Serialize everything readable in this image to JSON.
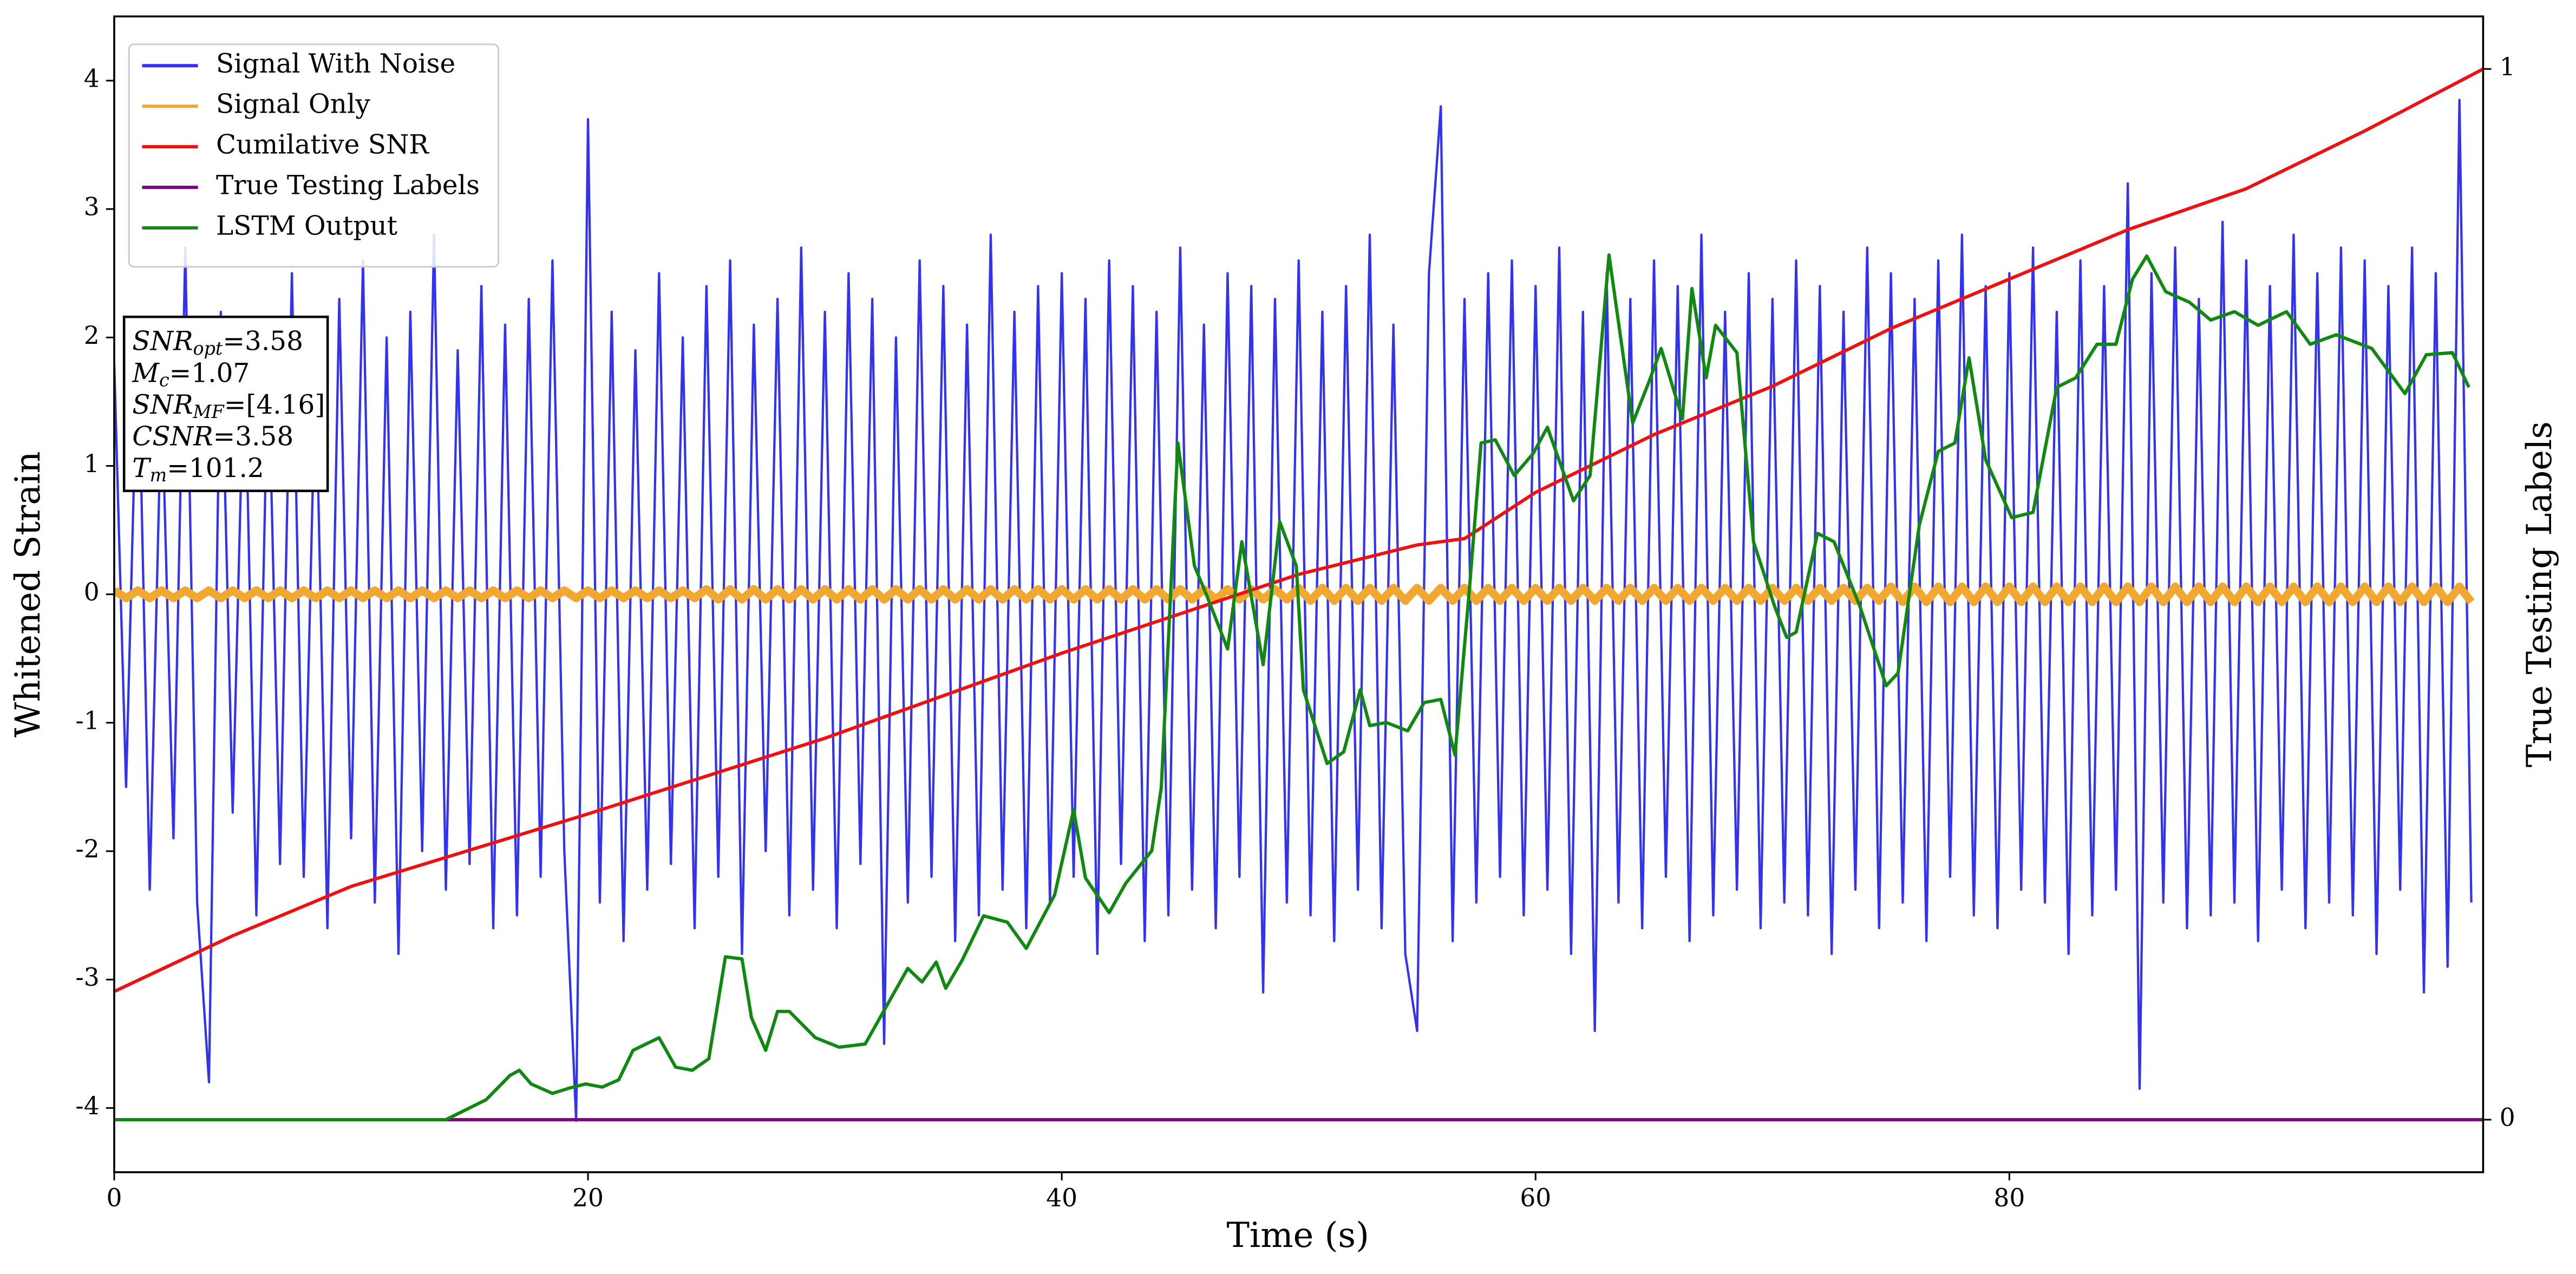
{
  "chart_data": {
    "type": "line",
    "xlabel": "Time (s)",
    "ylabel": "Whitened Strain",
    "y2label": "True Testing Labels",
    "xlim": [
      0,
      100
    ],
    "ylim": [
      -4.5,
      4.5
    ],
    "y2lim": [
      -0.05,
      1.05
    ],
    "xticks": [
      0,
      20,
      40,
      60,
      80
    ],
    "yticks": [
      -4,
      -3,
      -2,
      -1,
      0,
      1,
      2,
      3,
      4
    ],
    "y2ticks": [
      0,
      1
    ],
    "legend": "upper left",
    "annotation": [
      {
        "text": "SNR",
        "sub": "opt",
        "rest": "=3.58"
      },
      {
        "text": "M",
        "sub": "c",
        "rest": "=1.07"
      },
      {
        "text": "SNR",
        "sub": "MF",
        "rest": "=[4.16]"
      },
      {
        "text": "CSNR",
        "rest": "=3.58"
      },
      {
        "text": "T",
        "sub": "m",
        "rest": "=101.2"
      }
    ],
    "x": [
      0,
      0.5,
      1,
      1.5,
      2,
      2.5,
      3,
      3.5,
      4,
      4.5,
      5,
      5.5,
      6,
      6.5,
      7,
      7.5,
      8,
      8.5,
      9,
      9.5,
      10,
      10.5,
      11,
      11.5,
      12,
      12.5,
      13,
      13.5,
      14,
      14.5,
      15,
      15.5,
      16,
      16.5,
      17,
      17.5,
      18,
      18.5,
      19,
      19.5,
      20,
      20.5,
      21,
      21.5,
      22,
      22.5,
      23,
      23.5,
      24,
      24.5,
      25,
      25.5,
      26,
      26.5,
      27,
      27.5,
      28,
      28.5,
      29,
      29.5,
      30,
      30.5,
      31,
      31.5,
      32,
      32.5,
      33,
      33.5,
      34,
      34.5,
      35,
      35.5,
      36,
      36.5,
      37,
      37.5,
      38,
      38.5,
      39,
      39.5,
      40,
      40.5,
      41,
      41.5,
      42,
      42.5,
      43,
      43.5,
      44,
      44.5,
      45,
      45.5,
      46,
      46.5,
      47,
      47.5,
      48,
      48.5,
      49,
      49.5,
      50,
      50.5,
      51,
      51.5,
      52,
      52.5,
      53,
      53.5,
      54,
      54.5,
      55,
      55.5,
      56,
      56.5,
      57,
      57.5,
      58,
      58.5,
      59,
      59.5,
      60,
      60.5,
      61,
      61.5,
      62,
      62.5,
      63,
      63.5,
      64,
      64.5,
      65,
      65.5,
      66,
      66.5,
      67,
      67.5,
      68,
      68.5,
      69,
      69.5,
      70,
      70.5,
      71,
      71.5,
      72,
      72.5,
      73,
      73.5,
      74,
      74.5,
      75,
      75.5,
      76,
      76.5,
      77,
      77.5,
      78,
      78.5,
      79,
      79.5,
      80,
      80.5,
      81,
      81.5,
      82,
      82.5,
      83,
      83.5,
      84,
      84.5,
      85,
      85.5,
      86,
      86.5,
      87,
      87.5,
      88,
      88.5,
      89,
      89.5,
      90,
      90.5,
      91,
      91.5,
      92,
      92.5,
      93,
      93.5,
      94,
      94.5,
      95,
      95.5,
      96,
      96.5,
      97,
      97.5,
      98,
      98.5,
      99,
      99.5
    ],
    "series": [
      {
        "name": "Signal With Noise",
        "color": "#3333ee",
        "values": [
          1.8,
          -1.5,
          2.1,
          -2.3,
          1.6,
          -1.9,
          2.7,
          -2.4,
          -3.8,
          2.2,
          -1.7,
          2.0,
          -2.5,
          1.9,
          -2.1,
          2.5,
          -2.2,
          1.8,
          -2.6,
          2.3,
          -1.9,
          2.6,
          -2.4,
          2.0,
          -2.8,
          2.2,
          -2.0,
          2.8,
          -2.3,
          1.9,
          -2.1,
          2.4,
          -2.6,
          2.1,
          -2.5,
          2.3,
          -2.2,
          2.6,
          -2.0,
          -4.1,
          3.7,
          -2.4,
          2.2,
          -2.7,
          1.9,
          -2.3,
          2.5,
          -2.1,
          2.0,
          -2.6,
          2.4,
          -2.2,
          2.6,
          -2.8,
          2.1,
          -2.0,
          2.3,
          -2.5,
          2.7,
          -2.3,
          2.2,
          -2.6,
          2.5,
          -2.1,
          2.3,
          -3.5,
          2.0,
          -2.4,
          2.6,
          -2.2,
          2.4,
          -2.7,
          2.1,
          -2.5,
          2.8,
          -2.3,
          2.2,
          -2.6,
          2.4,
          -2.4,
          2.5,
          -2.2,
          2.3,
          -2.8,
          2.6,
          -2.1,
          2.4,
          -2.7,
          2.2,
          -2.5,
          2.7,
          -2.3,
          2.1,
          -2.6,
          2.5,
          -2.2,
          2.4,
          -3.1,
          2.3,
          -2.4,
          2.6,
          -2.5,
          2.2,
          -2.7,
          2.4,
          -2.3,
          2.8,
          -2.6,
          2.1,
          -2.8,
          -3.4,
          2.5,
          3.8,
          -2.7,
          2.3,
          -2.4,
          2.5,
          -2.2,
          2.6,
          -2.5,
          2.4,
          -2.3,
          2.7,
          -2.8,
          2.2,
          -3.4,
          2.5,
          -2.4,
          2.3,
          -2.6,
          2.6,
          -2.2,
          2.4,
          -2.7,
          2.8,
          -2.5,
          2.2,
          -2.3,
          2.5,
          -2.6,
          2.3,
          -2.4,
          2.6,
          -2.5,
          2.4,
          -2.8,
          2.2,
          -2.3,
          2.7,
          -2.6,
          2.5,
          -2.4,
          2.3,
          -2.7,
          2.6,
          -2.2,
          2.8,
          -2.5,
          2.4,
          -2.6,
          2.5,
          -2.3,
          2.7,
          -2.4,
          2.2,
          -2.8,
          2.6,
          -2.5,
          2.4,
          -2.3,
          3.2,
          -3.85,
          2.5,
          -2.4,
          2.7,
          -2.6,
          2.3,
          -2.5,
          2.9,
          -2.4,
          2.6,
          -2.7,
          2.4,
          -2.3,
          2.8,
          -2.6,
          2.5,
          -2.4,
          2.7,
          -2.5,
          2.6,
          -2.8,
          2.4,
          -2.3,
          2.7,
          -3.1,
          2.5,
          -2.9,
          3.85,
          -2.4
        ]
      },
      {
        "name": "Signal Only",
        "color": "#f0a830",
        "values": [
          0.03,
          -0.03,
          0.03,
          -0.03,
          0.03,
          -0.03,
          0.03,
          -0.03,
          0.03,
          -0.03,
          0.03,
          -0.03,
          0.03,
          -0.03,
          0.03,
          -0.03,
          0.03,
          -0.03,
          0.03,
          -0.03,
          0.03,
          -0.03,
          0.03,
          -0.03,
          0.03,
          -0.03,
          0.03,
          -0.03,
          0.03,
          -0.03,
          0.03,
          -0.03,
          0.03,
          -0.03,
          0.03,
          -0.03,
          0.03,
          -0.03,
          0.03,
          -0.03,
          0.03,
          -0.03,
          0.03,
          -0.03,
          0.03,
          -0.03,
          0.03,
          -0.03,
          0.03,
          -0.03,
          0.04,
          -0.04,
          0.04,
          -0.04,
          0.04,
          -0.04,
          0.04,
          -0.04,
          0.04,
          -0.04,
          0.04,
          -0.04,
          0.04,
          -0.04,
          0.04,
          -0.04,
          0.04,
          -0.04,
          0.04,
          -0.04,
          0.04,
          -0.04,
          0.04,
          -0.04,
          0.04,
          -0.04,
          0.04,
          -0.04,
          0.04,
          -0.04,
          0.04,
          -0.04,
          0.04,
          -0.04,
          0.04,
          -0.04,
          0.04,
          -0.04,
          0.04,
          -0.04,
          0.04,
          -0.04,
          0.04,
          -0.04,
          0.04,
          -0.04,
          0.04,
          -0.04,
          0.04,
          -0.04,
          0.05,
          -0.05,
          0.05,
          -0.05,
          0.05,
          -0.05,
          0.05,
          -0.05,
          0.05,
          -0.05,
          0.05,
          -0.05,
          0.05,
          -0.05,
          0.05,
          -0.05,
          0.05,
          -0.05,
          0.05,
          -0.05,
          0.05,
          -0.05,
          0.05,
          -0.05,
          0.05,
          -0.05,
          0.05,
          -0.05,
          0.05,
          -0.05,
          0.05,
          -0.05,
          0.05,
          -0.05,
          0.05,
          -0.05,
          0.05,
          -0.05,
          0.05,
          -0.05,
          0.05,
          -0.05,
          0.05,
          -0.05,
          0.05,
          -0.05,
          0.05,
          -0.05,
          0.05,
          -0.05,
          0.06,
          -0.06,
          0.06,
          -0.06,
          0.06,
          -0.06,
          0.06,
          -0.06,
          0.06,
          -0.06,
          0.06,
          -0.06,
          0.06,
          -0.06,
          0.06,
          -0.06,
          0.06,
          -0.06,
          0.06,
          -0.06,
          0.06,
          -0.06,
          0.06,
          -0.06,
          0.06,
          -0.06,
          0.06,
          -0.06,
          0.06,
          -0.06,
          0.06,
          -0.06,
          0.06,
          -0.06,
          0.06,
          -0.06,
          0.06,
          -0.06,
          0.06,
          -0.06,
          0.06,
          -0.06,
          0.06,
          -0.06,
          0.06,
          -0.06,
          0.06,
          -0.06,
          0.06,
          -0.06
        ]
      },
      {
        "name": "Cumilative SNR",
        "color": "#ee1111",
        "axis": "y2",
        "x": [
          0,
          5,
          10,
          20,
          30,
          40,
          50,
          55,
          57,
          60,
          65,
          70,
          75,
          80,
          85,
          90,
          95,
          100
        ],
        "values": [
          0.122,
          0.175,
          0.222,
          0.291,
          0.363,
          0.444,
          0.519,
          0.547,
          0.553,
          0.597,
          0.652,
          0.698,
          0.753,
          0.8,
          0.847,
          0.886,
          0.941,
          1.0
        ]
      },
      {
        "name": "True Testing Labels",
        "color": "#800080",
        "axis": "y2",
        "x": [
          0,
          100
        ],
        "values": [
          0,
          0
        ]
      },
      {
        "name": "LSTM Output",
        "color": "#118811",
        "axis": "y2",
        "x": [
          0,
          14,
          15.7,
          16.7,
          17.1,
          17.6,
          18.5,
          19.2,
          19.9,
          20.6,
          21.3,
          21.9,
          23.0,
          23.7,
          24.4,
          25.1,
          25.8,
          26.5,
          26.9,
          27.5,
          28.0,
          28.5,
          29.6,
          30.6,
          31.7,
          32.4,
          33.5,
          34.1,
          34.7,
          35.1,
          35.8,
          36.7,
          37.7,
          38.5,
          39.7,
          40.5,
          41.0,
          42.0,
          42.7,
          43.8,
          44.2,
          44.9,
          45.6,
          46.1,
          47.0,
          47.6,
          48.5,
          49.2,
          49.9,
          50.2,
          51.2,
          51.9,
          52.6,
          53.0,
          53.7,
          54.6,
          55.3,
          56.0,
          56.6,
          57.2,
          57.7,
          58.3,
          59.1,
          59.9,
          60.5,
          61.6,
          62.3,
          63.1,
          64.1,
          64.8,
          65.3,
          66.2,
          66.6,
          67.2,
          67.6,
          68.5,
          69.2,
          70.1,
          70.6,
          71.0,
          71.9,
          72.6,
          73.7,
          74.8,
          75.3,
          76.2,
          77.0,
          77.7,
          78.3,
          79.0,
          80.1,
          81.0,
          82.0,
          82.8,
          83.7,
          84.5,
          85.2,
          85.8,
          86.6,
          87.6,
          88.5,
          89.5,
          90.5,
          91.7,
          92.7,
          93.8,
          95.3,
          96.7,
          97.6,
          98.7,
          99.4
        ],
        "values": [
          0,
          0,
          0.019,
          0.042,
          0.047,
          0.034,
          0.025,
          0.03,
          0.034,
          0.031,
          0.038,
          0.066,
          0.078,
          0.05,
          0.047,
          0.058,
          0.155,
          0.153,
          0.097,
          0.066,
          0.103,
          0.103,
          0.078,
          0.069,
          0.072,
          0.1,
          0.144,
          0.131,
          0.15,
          0.125,
          0.152,
          0.194,
          0.188,
          0.163,
          0.214,
          0.295,
          0.23,
          0.197,
          0.225,
          0.256,
          0.316,
          0.644,
          0.527,
          0.5,
          0.448,
          0.55,
          0.433,
          0.569,
          0.527,
          0.409,
          0.339,
          0.35,
          0.409,
          0.375,
          0.378,
          0.37,
          0.397,
          0.4,
          0.347,
          0.503,
          0.644,
          0.647,
          0.613,
          0.634,
          0.659,
          0.589,
          0.613,
          0.823,
          0.663,
          0.703,
          0.734,
          0.667,
          0.791,
          0.706,
          0.756,
          0.73,
          0.55,
          0.488,
          0.459,
          0.464,
          0.558,
          0.55,
          0.488,
          0.413,
          0.425,
          0.566,
          0.636,
          0.644,
          0.725,
          0.628,
          0.573,
          0.578,
          0.697,
          0.706,
          0.738,
          0.738,
          0.8,
          0.822,
          0.788,
          0.778,
          0.761,
          0.769,
          0.756,
          0.769,
          0.738,
          0.747,
          0.734,
          0.691,
          0.728,
          0.73,
          0.697
        ]
      }
    ]
  }
}
